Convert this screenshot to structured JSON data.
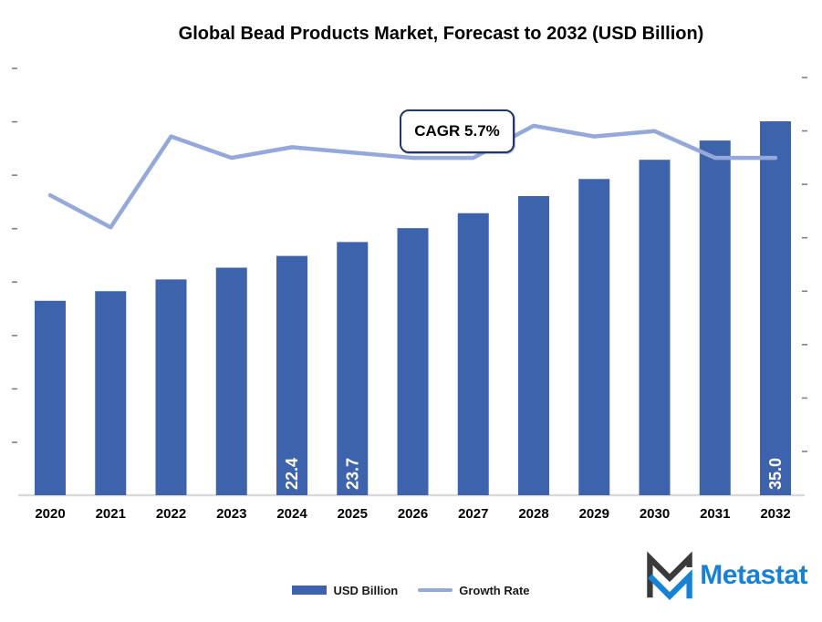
{
  "title": "Global Bead Products Market, Forecast to 2032 (USD Billion)",
  "callout": {
    "label": "CAGR 5.7%"
  },
  "legend": {
    "items": [
      {
        "label": "USD Billion",
        "type": "bar-swatch"
      },
      {
        "label": "Growth Rate",
        "type": "line-swatch"
      }
    ]
  },
  "logo": {
    "text": "Metastat",
    "text_color": "#1781d8",
    "mark_dark": "#3a3a3a",
    "mark_blue": "#1781d8"
  },
  "colors": {
    "bar": "#3d63ac",
    "line": "#94a8da",
    "callout_border": "#1f3864",
    "baseline": "#d9d9d9",
    "tick": "#808080",
    "bar_label": "#ffffff",
    "axis_text": "#000000"
  },
  "chart_data": {
    "type": "bar",
    "subtype": "combo-bar-line",
    "title": "Global Bead Products Market, Forecast to 2032 (USD Billion)",
    "annotation": "CAGR 5.7%",
    "categories": [
      "2020",
      "2021",
      "2022",
      "2023",
      "2024",
      "2025",
      "2026",
      "2027",
      "2028",
      "2029",
      "2030",
      "2031",
      "2032"
    ],
    "series": [
      {
        "name": "USD Billion",
        "type": "bar",
        "axis": "left",
        "values": [
          18.2,
          19.1,
          20.2,
          21.3,
          22.4,
          23.7,
          25.0,
          26.4,
          28.0,
          29.6,
          31.4,
          33.2,
          35.0
        ],
        "data_labels": [
          null,
          null,
          null,
          null,
          "22.4",
          "23.7",
          null,
          null,
          null,
          null,
          null,
          null,
          "35.0"
        ]
      },
      {
        "name": "Growth Rate",
        "type": "line",
        "axis": "right",
        "values": [
          4.8,
          4.2,
          5.9,
          5.5,
          5.7,
          5.6,
          5.5,
          5.5,
          6.1,
          5.9,
          6.0,
          5.5,
          5.5
        ],
        "unit": "%"
      }
    ],
    "left_axis": {
      "min": 0,
      "max": 40,
      "tick_step": 5,
      "tick_labels_visible": false
    },
    "right_axis": {
      "min": 0,
      "max": 7,
      "tick_step": 1,
      "tick_labels_visible": false
    },
    "grid": false,
    "legend_position": "bottom"
  }
}
